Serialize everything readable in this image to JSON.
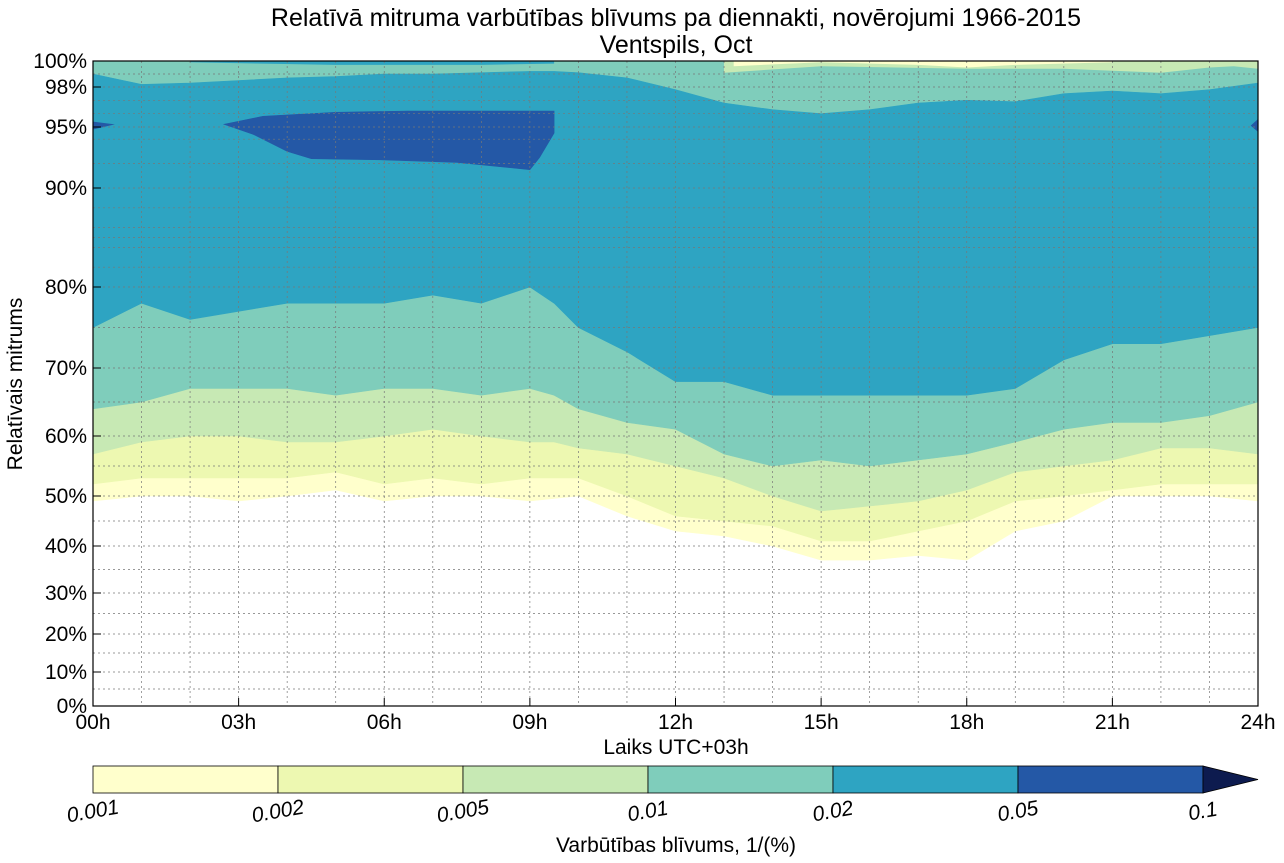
{
  "chart_data": {
    "type": "contourf",
    "title": "Relatīvā mitruma varbūtības blīvums pa diennakti, novērojumi 1966-2015",
    "subtitle": "Ventspils, Oct",
    "xlabel": "Laiks UTC+03h",
    "ylabel": "Relatīvais mitrums",
    "xlim": [
      0,
      24
    ],
    "x_ticks": [
      0,
      3,
      6,
      9,
      12,
      15,
      18,
      21,
      24
    ],
    "x_tick_labels": [
      "00h",
      "03h",
      "06h",
      "09h",
      "12h",
      "15h",
      "18h",
      "21h",
      "24h"
    ],
    "y_scale": "nonlinear (0-100%, finer near 100%)",
    "y_ticks": [
      0,
      10,
      20,
      30,
      40,
      50,
      60,
      70,
      80,
      90,
      95,
      98,
      100
    ],
    "y_tick_labels": [
      "0%",
      "10%",
      "20%",
      "30%",
      "40%",
      "50%",
      "60%",
      "70%",
      "80%",
      "90%",
      "95%",
      "98%",
      "100%"
    ],
    "grid": true,
    "colorbar": {
      "label": "Varbūtības blīvums, 1/(%)",
      "levels": [
        0.001,
        0.002,
        0.005,
        0.01,
        0.02,
        0.05,
        0.1
      ],
      "level_labels": [
        "0.001",
        "0.002",
        "0.005",
        "0.01",
        "0.02",
        "0.05",
        "0.1"
      ],
      "colors": [
        "#ffffcc",
        "#edf8b1",
        "#c7e9b4",
        "#7fcdbb",
        "#2ea4c2",
        "#2458a6",
        "#0d1b4f"
      ],
      "extend": "max"
    },
    "hours": [
      0,
      1,
      2,
      3,
      4,
      5,
      6,
      7,
      8,
      9,
      9.5,
      10,
      11,
      12,
      13,
      14,
      15,
      16,
      17,
      18,
      19,
      20,
      21,
      22,
      23,
      24
    ],
    "contours_rh": {
      "level_0.001_lower": [
        49,
        50,
        50,
        49,
        50,
        51,
        49,
        50,
        50,
        49,
        49.5,
        50,
        46,
        43,
        42,
        40,
        37,
        37,
        38,
        37,
        43,
        45,
        50,
        50,
        50,
        49
      ],
      "level_0.002_lower": [
        52,
        53,
        53,
        53,
        53,
        54,
        52,
        53,
        52,
        53,
        53,
        53,
        50,
        46,
        45,
        44,
        41,
        41,
        43,
        45,
        49,
        50,
        51,
        52,
        52,
        52
      ],
      "level_0.005_lower": [
        57,
        59,
        60,
        60,
        59,
        59,
        60,
        61,
        60,
        59,
        59,
        58,
        57,
        55,
        53,
        50,
        47,
        48,
        49,
        51,
        54,
        55,
        56,
        58,
        58,
        57
      ],
      "level_0.01_lower": [
        64,
        65,
        67,
        67,
        67,
        66,
        67,
        67,
        66,
        67,
        66,
        64,
        62,
        61,
        57,
        55,
        56,
        55,
        56,
        57,
        59,
        61,
        62,
        62,
        63,
        65
      ],
      "level_0.02_lower": [
        75,
        78,
        76,
        77,
        78,
        78,
        78,
        79,
        78,
        80,
        78,
        75,
        72,
        68,
        68,
        66,
        66,
        66,
        66,
        66,
        67,
        71,
        73,
        73,
        74,
        75
      ],
      "level_0.02_upper": [
        99.0,
        98.2,
        98.3,
        98.5,
        98.7,
        98.8,
        99.0,
        99.0,
        99.1,
        99.2,
        99.2,
        99.1,
        98.7,
        97.8,
        96.8,
        96.3,
        96.0,
        96.3,
        96.8,
        97.0,
        96.9,
        97.5,
        97.7,
        97.5,
        97.8,
        98.3
      ],
      "level_0.05_region": {
        "hours_from": 2.7,
        "hours_to": 9.5,
        "rh_from": 91.5,
        "rh_to": 96.2
      }
    }
  }
}
